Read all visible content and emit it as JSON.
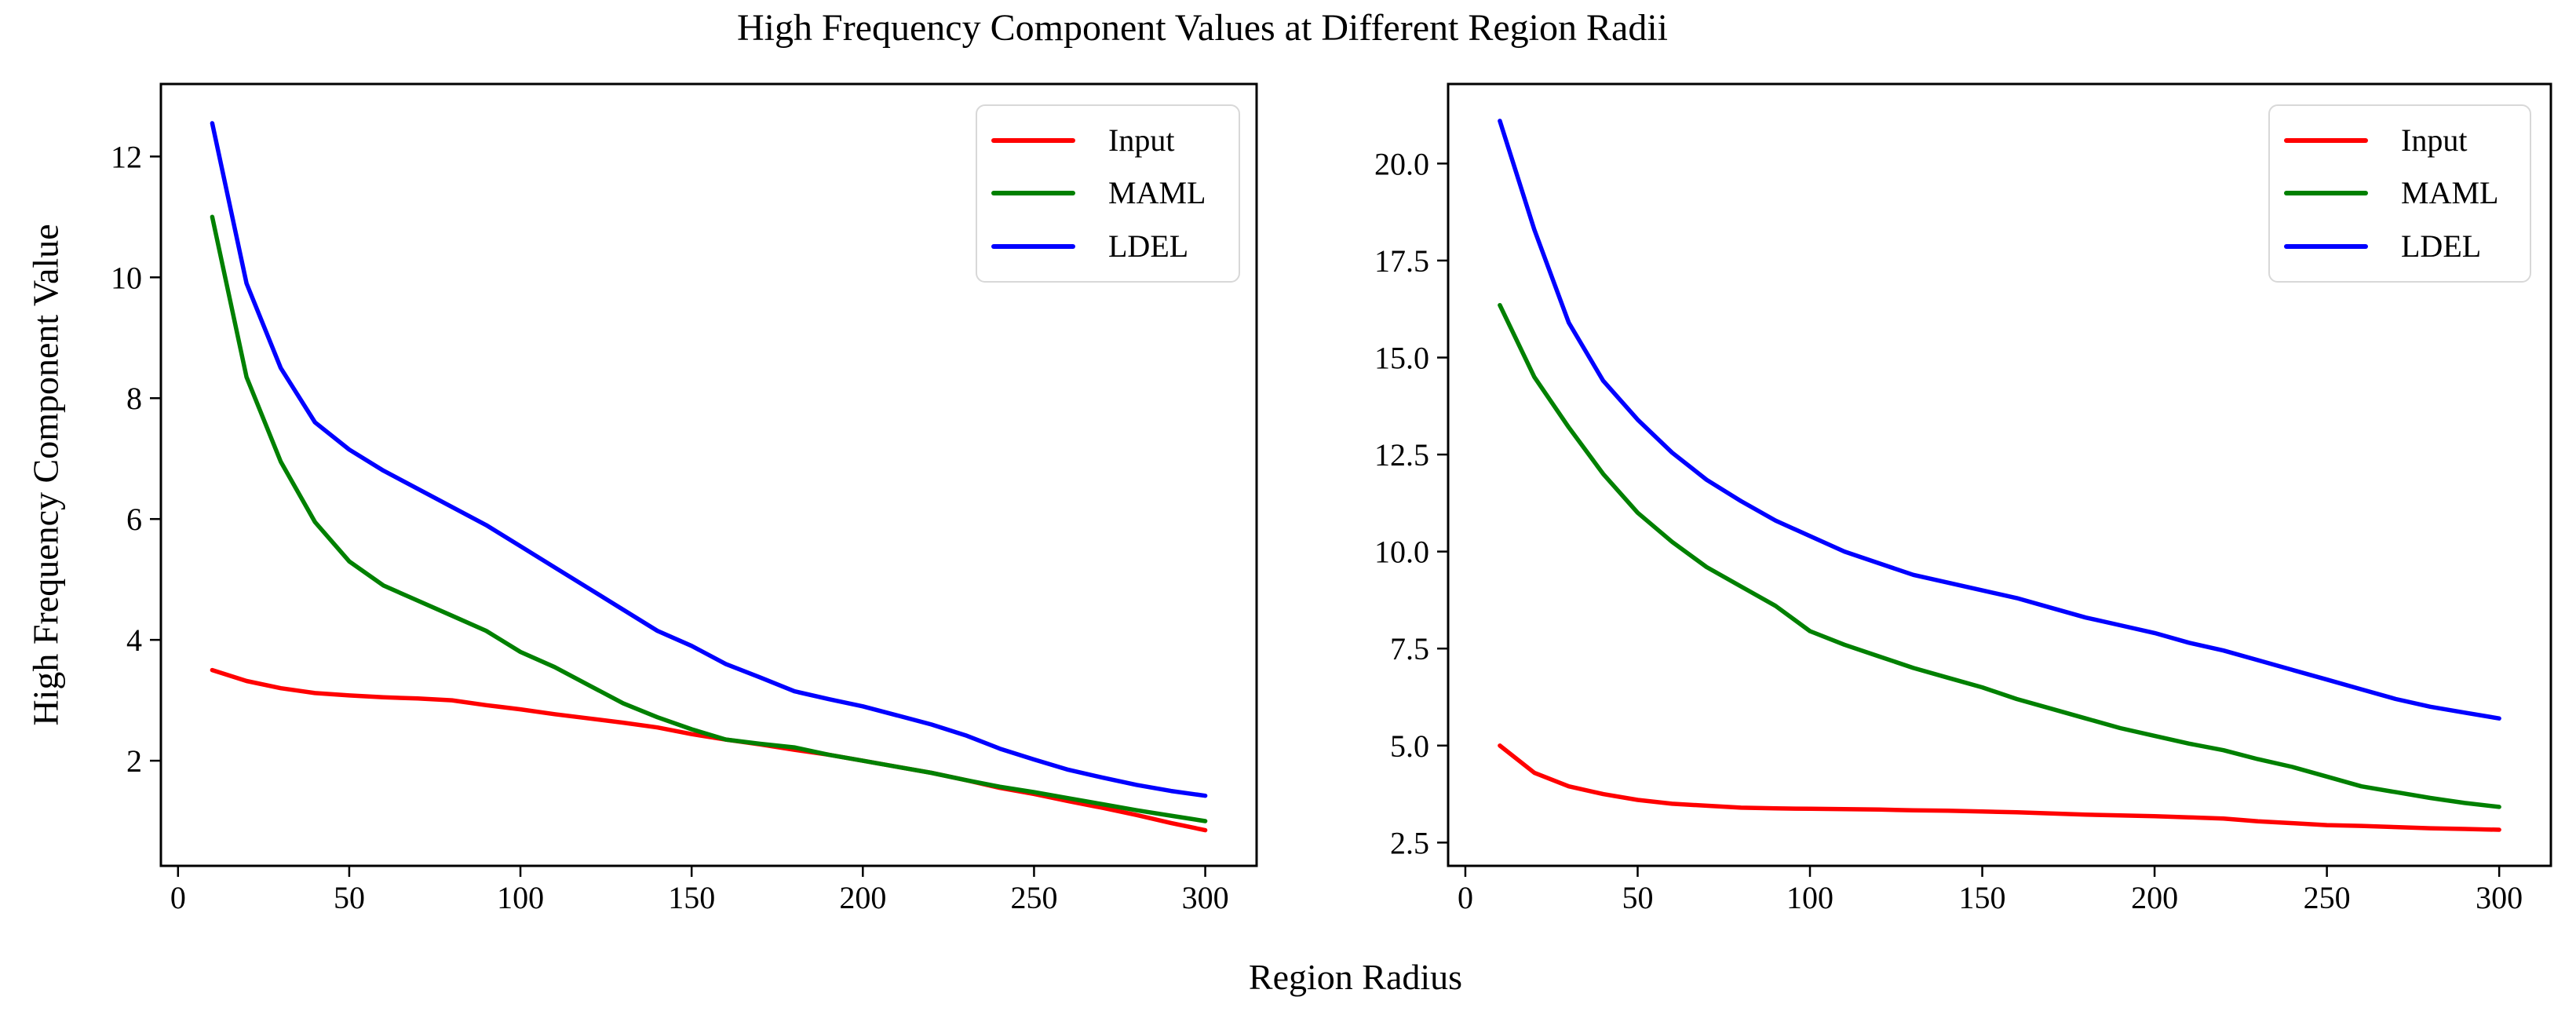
{
  "title": "High Frequency Component Values at Different Region Radii",
  "xlabel": "Region Radius",
  "ylabel": "High Frequency Component Value",
  "legend": {
    "entries": [
      {
        "label": "Input",
        "color": "#ff0000"
      },
      {
        "label": "MAML",
        "color": "#008000"
      },
      {
        "label": "LDEL",
        "color": "#0000ff"
      }
    ],
    "positions": [
      "upper-right-of-left-plot",
      "upper-right-of-right-plot"
    ]
  },
  "colors": {
    "input": "#ff0000",
    "maml": "#008000",
    "ldel": "#0000ff",
    "spine": "#000000",
    "legend_border": "#d8d8d8"
  },
  "chart_data": [
    {
      "type": "line",
      "name": "left-subplot",
      "title": "",
      "xlabel": "Region Radius",
      "ylabel": "High Frequency Component Value",
      "grid": false,
      "xlim": [
        -5,
        315
      ],
      "ylim": [
        0.26,
        13.2
      ],
      "xticks": [
        0,
        50,
        100,
        150,
        200,
        250,
        300
      ],
      "xtick_labels": [
        "0",
        "50",
        "100",
        "150",
        "200",
        "250",
        "300"
      ],
      "yticks": [
        2,
        4,
        6,
        8,
        10,
        12
      ],
      "ytick_labels": [
        "2",
        "4",
        "6",
        "8",
        "10",
        "12"
      ],
      "x": [
        10,
        20,
        30,
        40,
        50,
        60,
        70,
        80,
        90,
        100,
        110,
        120,
        130,
        140,
        150,
        160,
        170,
        180,
        190,
        200,
        210,
        220,
        230,
        240,
        250,
        260,
        270,
        280,
        290,
        300
      ],
      "series": [
        {
          "name": "Input",
          "color": "#ff0000",
          "values": [
            3.5,
            3.32,
            3.2,
            3.12,
            3.08,
            3.05,
            3.03,
            3.0,
            2.92,
            2.85,
            2.77,
            2.7,
            2.63,
            2.55,
            2.44,
            2.35,
            2.27,
            2.18,
            2.1,
            2.0,
            1.9,
            1.8,
            1.68,
            1.55,
            1.45,
            1.33,
            1.22,
            1.1,
            0.97,
            0.85
          ]
        },
        {
          "name": "MAML",
          "color": "#008000",
          "values": [
            11.0,
            8.35,
            6.95,
            5.95,
            5.3,
            4.9,
            4.65,
            4.4,
            4.15,
            3.8,
            3.55,
            3.25,
            2.95,
            2.72,
            2.52,
            2.35,
            2.28,
            2.22,
            2.1,
            2.0,
            1.9,
            1.8,
            1.68,
            1.57,
            1.48,
            1.38,
            1.28,
            1.18,
            1.09,
            1.0
          ]
        },
        {
          "name": "LDEL",
          "color": "#0000ff",
          "values": [
            12.55,
            9.9,
            8.5,
            7.6,
            7.15,
            6.8,
            6.5,
            6.2,
            5.9,
            5.55,
            5.2,
            4.85,
            4.5,
            4.15,
            3.9,
            3.6,
            3.38,
            3.15,
            3.02,
            2.9,
            2.75,
            2.6,
            2.42,
            2.2,
            2.02,
            1.85,
            1.72,
            1.6,
            1.5,
            1.42
          ]
        }
      ]
    },
    {
      "type": "line",
      "name": "right-subplot",
      "title": "",
      "xlabel": "Region Radius",
      "ylabel": "",
      "grid": false,
      "xlim": [
        -5,
        315
      ],
      "ylim": [
        1.9,
        22.05
      ],
      "xticks": [
        0,
        50,
        100,
        150,
        200,
        250,
        300
      ],
      "xtick_labels": [
        "0",
        "50",
        "100",
        "150",
        "200",
        "250",
        "300"
      ],
      "yticks": [
        2.5,
        5.0,
        7.5,
        10.0,
        12.5,
        15.0,
        17.5,
        20.0
      ],
      "ytick_labels": [
        "2.5",
        "5.0",
        "7.5",
        "10.0",
        "12.5",
        "15.0",
        "17.5",
        "20.0"
      ],
      "x": [
        10,
        20,
        30,
        40,
        50,
        60,
        70,
        80,
        90,
        100,
        110,
        120,
        130,
        140,
        150,
        160,
        170,
        180,
        190,
        200,
        210,
        220,
        230,
        240,
        250,
        260,
        270,
        280,
        290,
        300
      ],
      "series": [
        {
          "name": "Input",
          "color": "#ff0000",
          "values": [
            5.0,
            4.3,
            3.95,
            3.75,
            3.6,
            3.5,
            3.45,
            3.4,
            3.38,
            3.37,
            3.36,
            3.35,
            3.33,
            3.32,
            3.3,
            3.28,
            3.25,
            3.22,
            3.2,
            3.18,
            3.15,
            3.12,
            3.05,
            3.0,
            2.95,
            2.93,
            2.9,
            2.87,
            2.85,
            2.83
          ]
        },
        {
          "name": "MAML",
          "color": "#008000",
          "values": [
            16.35,
            14.5,
            13.2,
            12.0,
            11.0,
            10.25,
            9.6,
            9.1,
            8.6,
            7.95,
            7.6,
            7.3,
            7.0,
            6.75,
            6.5,
            6.2,
            5.95,
            5.7,
            5.45,
            5.25,
            5.05,
            4.88,
            4.65,
            4.45,
            4.2,
            3.95,
            3.8,
            3.65,
            3.52,
            3.42
          ]
        },
        {
          "name": "LDEL",
          "color": "#0000ff",
          "values": [
            21.1,
            18.3,
            15.9,
            14.4,
            13.4,
            12.55,
            11.85,
            11.3,
            10.8,
            10.4,
            10.0,
            9.7,
            9.4,
            9.2,
            9.0,
            8.8,
            8.55,
            8.3,
            8.1,
            7.9,
            7.65,
            7.45,
            7.2,
            6.95,
            6.7,
            6.45,
            6.2,
            6.0,
            5.85,
            5.7
          ]
        }
      ]
    }
  ]
}
